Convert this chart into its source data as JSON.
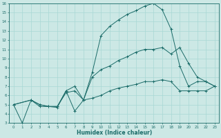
{
  "xlabel": "Humidex (Indice chaleur)",
  "xlim": [
    -0.5,
    23.5
  ],
  "ylim": [
    3,
    16
  ],
  "yticks": [
    3,
    4,
    5,
    6,
    7,
    8,
    9,
    10,
    11,
    12,
    13,
    14,
    15,
    16
  ],
  "xticks": [
    0,
    1,
    2,
    3,
    4,
    5,
    6,
    7,
    8,
    9,
    10,
    11,
    12,
    13,
    14,
    15,
    16,
    17,
    18,
    19,
    20,
    21,
    22,
    23
  ],
  "bg_color": "#cce8e5",
  "line_color": "#1a6b68",
  "grid_color": "#a8d8d4",
  "line1_x": [
    0,
    1,
    2,
    3,
    4,
    5,
    6,
    7,
    8,
    9,
    10,
    11,
    12,
    13,
    14,
    15,
    16,
    17,
    18,
    19,
    20,
    21,
    22,
    23
  ],
  "line1_y": [
    5.0,
    3.0,
    5.5,
    4.8,
    4.8,
    4.7,
    6.5,
    4.3,
    5.5,
    8.5,
    12.5,
    13.5,
    14.2,
    14.8,
    15.2,
    15.7,
    16.0,
    15.3,
    13.2,
    9.2,
    7.0,
    7.5,
    7.5,
    7.0
  ],
  "line2_x": [
    0,
    2,
    3,
    4,
    5,
    6,
    7,
    8,
    9,
    10,
    11,
    12,
    13,
    14,
    15,
    16,
    17,
    18,
    19,
    20,
    21,
    22,
    23
  ],
  "line2_y": [
    5.0,
    5.5,
    5.0,
    4.8,
    4.8,
    6.5,
    7.0,
    5.5,
    8.0,
    8.8,
    9.2,
    9.8,
    10.2,
    10.7,
    11.0,
    11.0,
    11.2,
    10.5,
    11.2,
    9.5,
    8.0,
    7.5,
    7.0
  ],
  "line3_x": [
    0,
    2,
    3,
    4,
    5,
    6,
    7,
    8,
    9,
    10,
    11,
    12,
    13,
    14,
    15,
    16,
    17,
    18,
    19,
    20,
    21,
    22,
    23
  ],
  "line3_y": [
    5.0,
    5.5,
    5.0,
    4.8,
    4.8,
    6.3,
    6.5,
    5.5,
    5.7,
    6.0,
    6.5,
    6.8,
    7.0,
    7.2,
    7.5,
    7.5,
    7.7,
    7.5,
    6.5,
    6.5,
    6.5,
    6.5,
    7.0
  ]
}
